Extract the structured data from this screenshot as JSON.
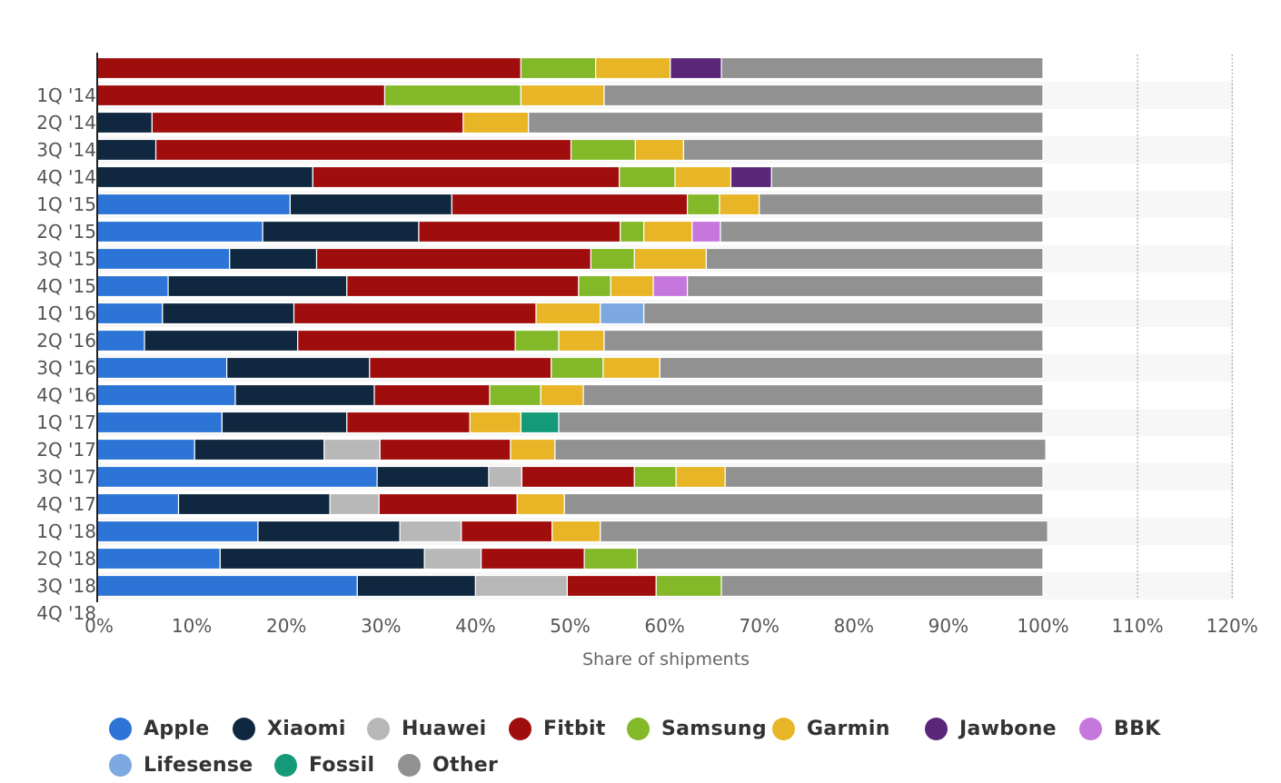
{
  "chart_data": {
    "type": "bar",
    "orientation": "horizontal",
    "stacked": true,
    "title": "",
    "xlabel": "Share of shipments",
    "ylabel": "",
    "xlim": [
      0,
      120
    ],
    "x_ticks": [
      "0%",
      "10%",
      "20%",
      "30%",
      "40%",
      "50%",
      "60%",
      "70%",
      "80%",
      "90%",
      "100%",
      "110%",
      "120%"
    ],
    "categories": [
      "1Q '14",
      "2Q '14",
      "3Q '14",
      "4Q '14",
      "1Q '15",
      "2Q '15",
      "3Q '15",
      "4Q '15",
      "1Q '16",
      "2Q '16",
      "3Q '16",
      "4Q '16",
      "1Q '17",
      "2Q '17",
      "3Q '17",
      "4Q '17",
      "1Q '18",
      "2Q '18",
      "3Q '18",
      "4Q '18"
    ],
    "legend_position": "bottom",
    "grid": false,
    "series": [
      {
        "name": "Apple",
        "color": "#2c74d6",
        "values": [
          0,
          0,
          0,
          0,
          0,
          20.4,
          17.5,
          14.0,
          7.5,
          6.9,
          5.0,
          13.7,
          14.6,
          13.2,
          10.3,
          29.6,
          8.6,
          17.0,
          13.0,
          27.5
        ]
      },
      {
        "name": "Xiaomi",
        "color": "#0f2840",
        "values": [
          0,
          0,
          5.8,
          6.2,
          22.8,
          17.1,
          16.5,
          9.2,
          18.9,
          13.9,
          16.2,
          15.1,
          14.7,
          13.2,
          13.7,
          11.8,
          16.0,
          15.0,
          21.6,
          12.5
        ]
      },
      {
        "name": "Huawei",
        "color": "#b8b8b8",
        "values": [
          0,
          0,
          0,
          0,
          0,
          0,
          0,
          0,
          0,
          0,
          0,
          0,
          0,
          0,
          5.9,
          3.5,
          5.2,
          6.5,
          6.0,
          9.7
        ]
      },
      {
        "name": "Fitbit",
        "color": "#a00d0d",
        "values": [
          44.8,
          30.4,
          32.9,
          43.9,
          32.4,
          24.9,
          21.3,
          29.0,
          24.5,
          25.6,
          23.0,
          19.2,
          12.2,
          13.0,
          13.8,
          11.9,
          14.6,
          9.6,
          10.9,
          9.4
        ]
      },
      {
        "name": "Samsung",
        "color": "#83b828",
        "values": [
          7.9,
          14.4,
          0,
          6.8,
          5.9,
          3.4,
          2.5,
          4.6,
          3.4,
          0,
          4.6,
          5.5,
          5.4,
          0,
          0,
          4.4,
          0,
          0,
          5.6,
          6.9
        ]
      },
      {
        "name": "Garmin",
        "color": "#e8b526",
        "values": [
          7.9,
          8.8,
          6.9,
          5.1,
          5.9,
          4.2,
          5.1,
          7.6,
          4.5,
          6.8,
          4.8,
          6.0,
          4.5,
          5.4,
          4.7,
          5.2,
          5.0,
          5.1,
          0,
          0
        ]
      },
      {
        "name": "Jawbone",
        "color": "#5a2678",
        "values": [
          5.4,
          0,
          0,
          0,
          4.3,
          0,
          0,
          0,
          0,
          0,
          0,
          0,
          0,
          0,
          0,
          0,
          0,
          0,
          0,
          0
        ]
      },
      {
        "name": "BBK",
        "color": "#c677dd",
        "values": [
          0,
          0,
          0,
          0,
          0,
          0,
          3.0,
          0,
          3.6,
          0,
          0,
          0,
          0,
          0,
          0,
          0,
          0,
          0,
          0,
          0
        ]
      },
      {
        "name": "Lifesense",
        "color": "#7da9e1",
        "values": [
          0,
          0,
          0,
          0,
          0,
          0,
          0,
          0,
          0,
          4.6,
          0,
          0,
          0,
          0,
          0,
          0,
          0,
          0,
          0,
          0
        ]
      },
      {
        "name": "Fossil",
        "color": "#149a79",
        "values": [
          0,
          0,
          0,
          0,
          0,
          0,
          0,
          0,
          0,
          0,
          0,
          0,
          0,
          4.0,
          0,
          0,
          0,
          0,
          0,
          0
        ]
      },
      {
        "name": "Other",
        "color": "#919191",
        "values": [
          34.0,
          46.4,
          54.4,
          38.0,
          28.7,
          30.0,
          34.1,
          35.6,
          37.6,
          42.2,
          46.4,
          40.5,
          48.6,
          51.2,
          51.9,
          33.6,
          50.6,
          47.3,
          42.9,
          34.0
        ]
      }
    ]
  }
}
